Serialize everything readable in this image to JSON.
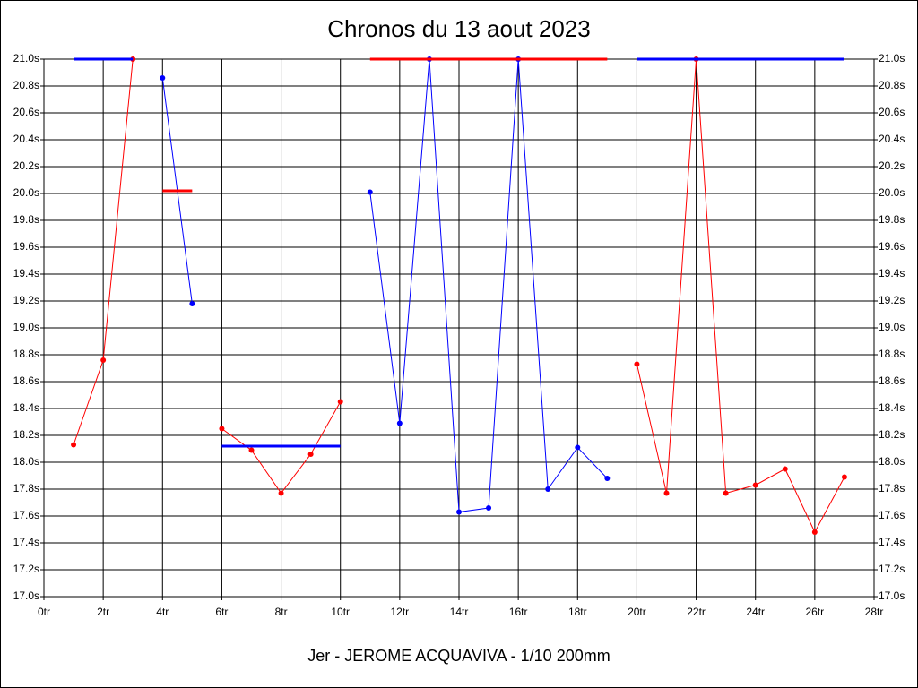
{
  "chart_data": {
    "type": "line",
    "title": "Chronos du 13 aout 2023",
    "subtitle": "Jer - JEROME ACQUAVIVA - 1/10 200mm",
    "x": [
      1,
      2,
      3,
      4,
      5,
      6,
      7,
      8,
      9,
      10,
      11,
      12,
      13,
      14,
      15,
      16,
      17,
      18,
      19,
      20,
      21,
      22,
      23,
      24,
      25,
      26,
      27
    ],
    "series": [
      {
        "color": "#ff0000",
        "values": [
          18.13,
          18.76,
          21.0,
          null,
          null,
          18.25,
          18.09,
          17.77,
          18.06,
          18.45,
          null,
          null,
          null,
          null,
          null,
          null,
          null,
          null,
          null,
          18.73,
          17.77,
          21.0,
          17.77,
          17.83,
          17.95,
          17.48,
          17.89
        ]
      },
      {
        "color": "#0000ff",
        "values": [
          null,
          null,
          null,
          20.86,
          19.18,
          null,
          null,
          null,
          null,
          null,
          20.01,
          18.29,
          21.0,
          17.63,
          17.66,
          21.0,
          17.8,
          18.11,
          17.88,
          null,
          null,
          null,
          null,
          null,
          null,
          null,
          null
        ]
      }
    ],
    "reference_lines": [
      {
        "color": "#0000ff",
        "from": 1,
        "to": 3,
        "value": 21.0
      },
      {
        "color": "#ff0000",
        "from": 4,
        "to": 5,
        "value": 20.02
      },
      {
        "color": "#0000ff",
        "from": 6,
        "to": 10,
        "value": 18.12
      },
      {
        "color": "#ff0000",
        "from": 11,
        "to": 19,
        "value": 21.0
      },
      {
        "color": "#0000ff",
        "from": 20,
        "to": 27,
        "value": 21.0
      }
    ],
    "xlim": [
      0,
      28
    ],
    "xticks": [
      {
        "value": 0,
        "label": "0tr"
      },
      {
        "value": 2,
        "label": "2tr"
      },
      {
        "value": 4,
        "label": "4tr"
      },
      {
        "value": 6,
        "label": "6tr"
      },
      {
        "value": 8,
        "label": "8tr"
      },
      {
        "value": 10,
        "label": "10tr"
      },
      {
        "value": 12,
        "label": "12tr"
      },
      {
        "value": 14,
        "label": "14tr"
      },
      {
        "value": 16,
        "label": "16tr"
      },
      {
        "value": 18,
        "label": "18tr"
      },
      {
        "value": 20,
        "label": "20tr"
      },
      {
        "value": 22,
        "label": "22tr"
      },
      {
        "value": 24,
        "label": "24tr"
      },
      {
        "value": 26,
        "label": "26tr"
      },
      {
        "value": 28,
        "label": "28tr"
      }
    ],
    "ylim": [
      17.0,
      21.0
    ],
    "yticks": [
      {
        "value": 17.0,
        "label": "17.0s"
      },
      {
        "value": 17.2,
        "label": "17.2s"
      },
      {
        "value": 17.4,
        "label": "17.4s"
      },
      {
        "value": 17.6,
        "label": "17.6s"
      },
      {
        "value": 17.8,
        "label": "17.8s"
      },
      {
        "value": 18.0,
        "label": "18.0s"
      },
      {
        "value": 18.2,
        "label": "18.2s"
      },
      {
        "value": 18.4,
        "label": "18.4s"
      },
      {
        "value": 18.6,
        "label": "18.6s"
      },
      {
        "value": 18.8,
        "label": "18.8s"
      },
      {
        "value": 19.0,
        "label": "19.0s"
      },
      {
        "value": 19.2,
        "label": "19.2s"
      },
      {
        "value": 19.4,
        "label": "19.4s"
      },
      {
        "value": 19.6,
        "label": "19.6s"
      },
      {
        "value": 19.8,
        "label": "19.8s"
      },
      {
        "value": 20.0,
        "label": "20.0s"
      },
      {
        "value": 20.2,
        "label": "20.2s"
      },
      {
        "value": 20.4,
        "label": "20.4s"
      },
      {
        "value": 20.6,
        "label": "20.6s"
      },
      {
        "value": 20.8,
        "label": "20.8s"
      },
      {
        "value": 21.0,
        "label": "21.0s"
      }
    ],
    "grid": true
  }
}
